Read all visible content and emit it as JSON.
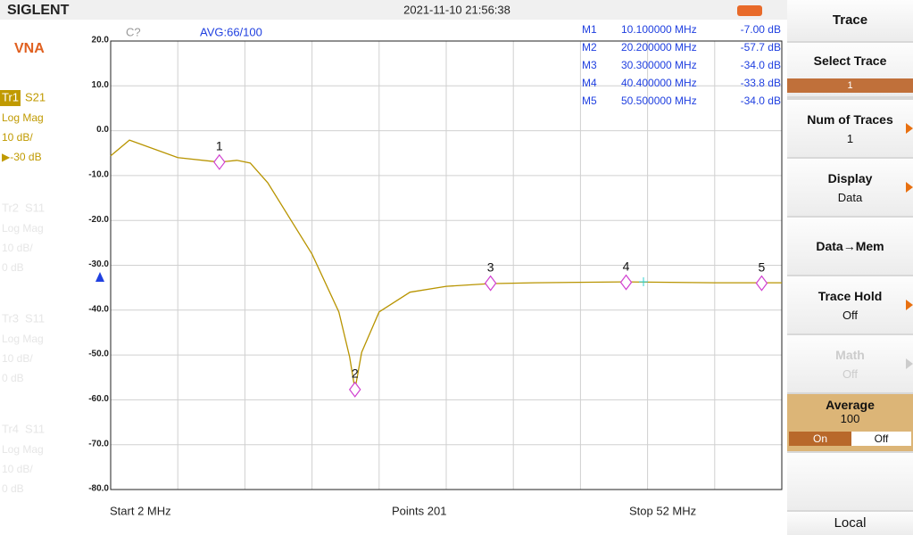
{
  "header": {
    "brand": "SIGLENT",
    "datetime": "2021-11-10 21:56:38",
    "status": "C?",
    "average": "AVG:66/100"
  },
  "left_panel": {
    "mode": "VNA",
    "traces": [
      {
        "id": "Tr1",
        "param": "S21",
        "format": "Log Mag",
        "scale": "10 dB/",
        "ref": "▶-30 dB"
      },
      {
        "id": "Tr2",
        "param": "S11",
        "format": "Log Mag",
        "scale": "10 dB/",
        "ref": "0 dB"
      },
      {
        "id": "Tr3",
        "param": "S11",
        "format": "Log Mag",
        "scale": "10 dB/",
        "ref": "0 dB"
      },
      {
        "id": "Tr4",
        "param": "S11",
        "format": "Log Mag",
        "scale": "10 dB/",
        "ref": "0 dB"
      }
    ]
  },
  "chart_data": {
    "type": "line",
    "color": "#b89400",
    "x": [
      2,
      3.4,
      7,
      10.1,
      11.4,
      12.4,
      13.7,
      17,
      19,
      19.8,
      20.2,
      20.7,
      22,
      24.3,
      27,
      30.2,
      33.6,
      40.3,
      47,
      52
    ],
    "values": [
      -5.6,
      -2.1,
      -6.0,
      -7.0,
      -6.6,
      -7.2,
      -11.6,
      -27.5,
      -40.4,
      -50.4,
      -57.7,
      -49.4,
      -40.4,
      -36.0,
      -34.7,
      -34.1,
      -33.9,
      -33.7,
      -33.9,
      -33.9
    ],
    "xlim": [
      2,
      52
    ],
    "ylim": [
      -80,
      20
    ],
    "yticks": [
      {
        "value": 20,
        "label": "20.0"
      },
      {
        "value": 10,
        "label": "10.0"
      },
      {
        "value": 0,
        "label": "0.0"
      },
      {
        "value": -10,
        "label": "-10.0"
      },
      {
        "value": -20,
        "label": "-20.0"
      },
      {
        "value": -30,
        "label": "-30.0"
      },
      {
        "value": -40,
        "label": "-40.0"
      },
      {
        "value": -50,
        "label": "-50.0"
      },
      {
        "value": -60,
        "label": "-60.0"
      },
      {
        "value": -70,
        "label": "-70.0"
      },
      {
        "value": -80,
        "label": "-80.0"
      }
    ],
    "markers": [
      {
        "name": "M1",
        "label": "1",
        "freq": 10.1,
        "freq_label": "10.100000 MHz",
        "value": -7.0,
        "value_label": "-7.00 dB"
      },
      {
        "name": "M2",
        "label": "2",
        "freq": 20.2,
        "freq_label": "20.200000 MHz",
        "value": -57.7,
        "value_label": "-57.7 dB"
      },
      {
        "name": "M3",
        "label": "3",
        "freq": 30.3,
        "freq_label": "30.300000 MHz",
        "value": -34.0,
        "value_label": "-34.0 dB"
      },
      {
        "name": "M4",
        "label": "4",
        "freq": 40.4,
        "freq_label": "40.400000 MHz",
        "value": -33.8,
        "value_label": "-33.8 dB"
      },
      {
        "name": "M5",
        "label": "5",
        "freq": 50.5,
        "freq_label": "50.500000 MHz",
        "value": -34.0,
        "value_label": "-34.0 dB"
      }
    ]
  },
  "footer": {
    "start": "Start  2 MHz",
    "points": "Points  201",
    "stop": "Stop  52 MHz"
  },
  "menu": {
    "title": "Trace",
    "select_trace": {
      "label": "Select Trace",
      "value": "1"
    },
    "num_traces": {
      "label": "Num of Traces",
      "value": "1"
    },
    "display": {
      "label": "Display",
      "value": "Data"
    },
    "data_mem": {
      "label": "Data→Mem"
    },
    "trace_hold": {
      "label": "Trace Hold",
      "value": "Off"
    },
    "math": {
      "label": "Math",
      "value": "Off"
    },
    "average": {
      "label": "Average",
      "value": "100",
      "on": "On",
      "off": "Off"
    },
    "local": "Local"
  }
}
